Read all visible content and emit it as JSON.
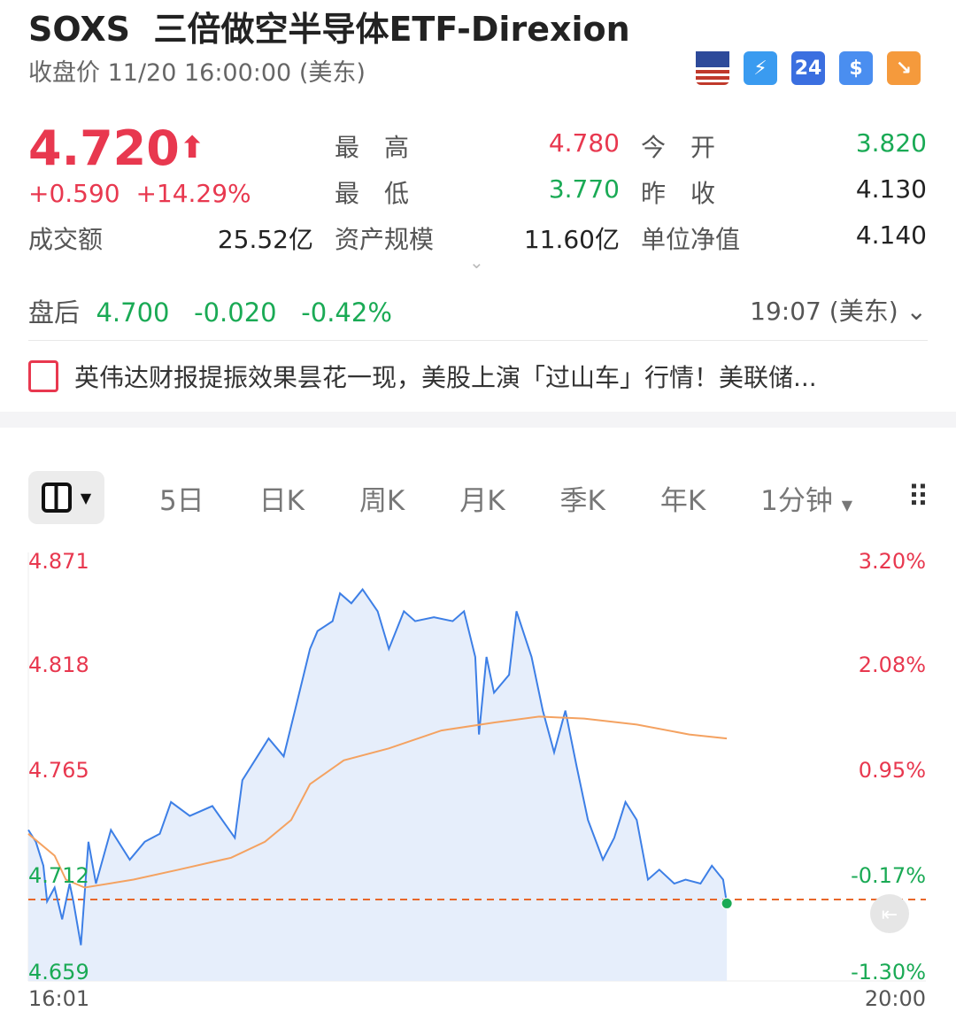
{
  "header": {
    "symbol": "SOXS",
    "name": "三倍做空半导体ETF-Direxion",
    "status": "收盘价 11/20 16:00:00 (美东)",
    "icons": [
      {
        "name": "us-flag-icon",
        "color": "#c0392b"
      },
      {
        "name": "lightning-2-icon",
        "label": "⚡",
        "color": "#3a9bf0"
      },
      {
        "name": "24h-icon",
        "label": "24",
        "color": "#3b6fe0"
      },
      {
        "name": "dollar-icon",
        "label": "$",
        "color": "#4a8ef0"
      },
      {
        "name": "trend-down-icon",
        "label": "↘",
        "color": "#f59a3c"
      }
    ]
  },
  "quote": {
    "price": "4.720",
    "arrow": "⬆",
    "change": "+0.590",
    "change_pct": "+14.29%",
    "fields": [
      {
        "label": "最　高",
        "value": "4.780",
        "color": "red"
      },
      {
        "label": "今　开",
        "value": "3.820",
        "color": "green"
      },
      {
        "label": "最　低",
        "value": "3.770",
        "color": "green"
      },
      {
        "label": "昨　收",
        "value": "4.130",
        "color": "plain"
      },
      {
        "label": "成交额",
        "value": "25.52亿",
        "color": "plain"
      },
      {
        "label": "资产规模",
        "value": "11.60亿",
        "color": "plain"
      },
      {
        "label": "单位净值",
        "value": "4.140",
        "color": "plain"
      }
    ]
  },
  "after_hours": {
    "label": "盘后",
    "price": "4.700",
    "change": "-0.020",
    "change_pct": "-0.42%",
    "time": "19:07 (美东)"
  },
  "news": {
    "text": "英伟达财报提振效果昙花一现，美股上演「过山车」行情！美联储..."
  },
  "tabs": {
    "items": [
      "5日",
      "日K",
      "周K",
      "月K",
      "季K",
      "年K"
    ],
    "interval": "1分钟"
  },
  "chart_data": {
    "type": "line",
    "ylim": [
      4.659,
      4.871
    ],
    "prev_close": 4.72,
    "reference_line": 4.7,
    "y_ticks": [
      "4.871",
      "4.818",
      "4.765",
      "4.712",
      "4.659"
    ],
    "y_ticks_right": [
      "3.20%",
      "2.08%",
      "0.95%",
      "-0.17%",
      "-1.30%"
    ],
    "x_ticks": [
      "16:01",
      "20:00"
    ],
    "x_range": [
      "16:01",
      "20:00"
    ],
    "colors": {
      "price": "#3d7fe6",
      "avg": "#f4a261",
      "ref": "#e8672a",
      "fill": "#e3ecfb"
    },
    "price": [
      [
        "16:01",
        4.735
      ],
      [
        "16:03",
        4.729
      ],
      [
        "16:05",
        4.717
      ],
      [
        "16:06",
        4.699
      ],
      [
        "16:08",
        4.706
      ],
      [
        "16:10",
        4.69
      ],
      [
        "16:12",
        4.708
      ],
      [
        "16:13",
        4.699
      ],
      [
        "16:15",
        4.677
      ],
      [
        "16:17",
        4.729
      ],
      [
        "16:19",
        4.708
      ],
      [
        "16:23",
        4.735
      ],
      [
        "16:28",
        4.72
      ],
      [
        "16:32",
        4.729
      ],
      [
        "16:36",
        4.733
      ],
      [
        "16:39",
        4.749
      ],
      [
        "16:44",
        4.742
      ],
      [
        "16:50",
        4.747
      ],
      [
        "16:56",
        4.731
      ],
      [
        "16:58",
        4.76
      ],
      [
        "17:02",
        4.772
      ],
      [
        "17:05",
        4.781
      ],
      [
        "17:09",
        4.772
      ],
      [
        "17:12",
        4.795
      ],
      [
        "17:16",
        4.826
      ],
      [
        "17:18",
        4.835
      ],
      [
        "17:22",
        4.84
      ],
      [
        "17:24",
        4.854
      ],
      [
        "17:27",
        4.849
      ],
      [
        "17:30",
        4.856
      ],
      [
        "17:34",
        4.845
      ],
      [
        "17:37",
        4.826
      ],
      [
        "17:41",
        4.845
      ],
      [
        "17:44",
        4.84
      ],
      [
        "17:49",
        4.842
      ],
      [
        "17:54",
        4.84
      ],
      [
        "17:57",
        4.845
      ],
      [
        "18:00",
        4.822
      ],
      [
        "18:01",
        4.783
      ],
      [
        "18:03",
        4.822
      ],
      [
        "18:05",
        4.804
      ],
      [
        "18:09",
        4.813
      ],
      [
        "18:11",
        4.845
      ],
      [
        "18:15",
        4.822
      ],
      [
        "18:18",
        4.795
      ],
      [
        "18:21",
        4.774
      ],
      [
        "18:24",
        4.795
      ],
      [
        "18:27",
        4.767
      ],
      [
        "18:30",
        4.74
      ],
      [
        "18:34",
        4.72
      ],
      [
        "18:37",
        4.731
      ],
      [
        "18:40",
        4.749
      ],
      [
        "18:43",
        4.74
      ],
      [
        "18:46",
        4.71
      ],
      [
        "18:49",
        4.715
      ],
      [
        "18:53",
        4.708
      ],
      [
        "18:56",
        4.71
      ],
      [
        "19:00",
        4.708
      ],
      [
        "19:03",
        4.717
      ],
      [
        "19:06",
        4.71
      ],
      [
        "19:07",
        4.698
      ]
    ],
    "avg": [
      [
        "16:01",
        4.733
      ],
      [
        "16:08",
        4.722
      ],
      [
        "16:11",
        4.71
      ],
      [
        "16:16",
        4.706
      ],
      [
        "16:29",
        4.71
      ],
      [
        "16:41",
        4.715
      ],
      [
        "16:55",
        4.721
      ],
      [
        "17:04",
        4.729
      ],
      [
        "17:11",
        4.74
      ],
      [
        "17:16",
        4.758
      ],
      [
        "17:25",
        4.77
      ],
      [
        "17:37",
        4.776
      ],
      [
        "17:51",
        4.785
      ],
      [
        "18:05",
        4.789
      ],
      [
        "18:17",
        4.792
      ],
      [
        "18:29",
        4.791
      ],
      [
        "18:43",
        4.788
      ],
      [
        "18:57",
        4.783
      ],
      [
        "19:07",
        4.781
      ]
    ]
  }
}
